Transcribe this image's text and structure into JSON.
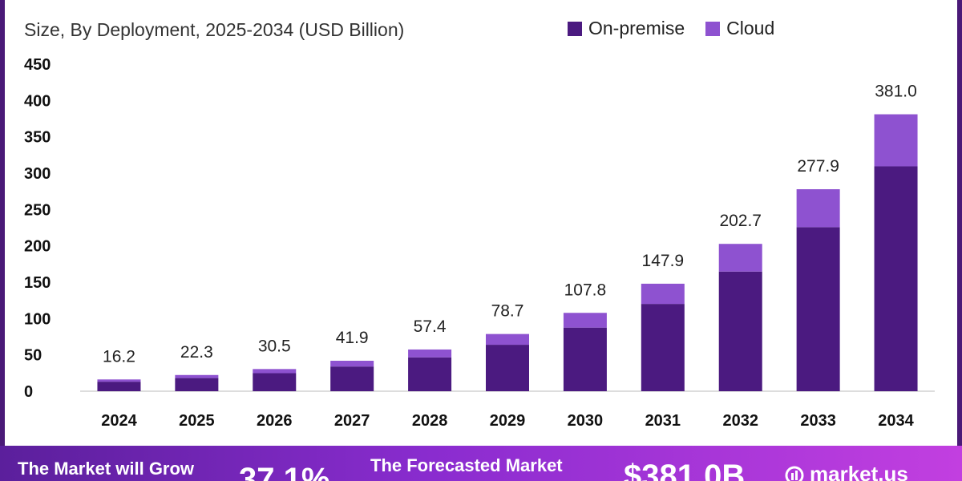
{
  "header": {
    "title_fragment": "",
    "subtitle": "Size, By Deployment, 2025-2034 (USD Billion)"
  },
  "colors": {
    "on_premise": "#4b1a80",
    "cloud": "#8e52d0",
    "frame": "#4a1a78"
  },
  "legend": [
    {
      "label": "On-premise",
      "color": "#4b1a80"
    },
    {
      "label": "Cloud",
      "color": "#8e52d0"
    }
  ],
  "chart_data": {
    "type": "bar",
    "stacked": true,
    "categories": [
      "2024",
      "2025",
      "2026",
      "2027",
      "2028",
      "2029",
      "2030",
      "2031",
      "2032",
      "2033",
      "2034"
    ],
    "series": [
      {
        "name": "On-premise",
        "values": [
          13.1,
          18.1,
          24.8,
          34.0,
          46.6,
          63.9,
          87.5,
          120.1,
          164.6,
          225.7,
          309.4
        ]
      },
      {
        "name": "Cloud",
        "values": [
          3.1,
          4.2,
          5.7,
          7.9,
          10.8,
          14.8,
          20.3,
          27.8,
          38.1,
          52.2,
          71.6
        ]
      }
    ],
    "totals": [
      "16.2",
      "22.3",
      "30.5",
      "41.9",
      "57.4",
      "78.7",
      "107.8",
      "147.9",
      "202.7",
      "277.9",
      "381.0"
    ],
    "ylim": [
      0,
      450
    ],
    "yticks": [
      0,
      50,
      100,
      150,
      200,
      250,
      300,
      350,
      400,
      450
    ],
    "grid": false,
    "legend_position": "top-right"
  },
  "footer": {
    "grow_label": "The Market will Grow",
    "cagr": "37.1%",
    "forecast_label": "The Forecasted Market",
    "forecast_value": "$381.0B",
    "brand": "market.us"
  }
}
